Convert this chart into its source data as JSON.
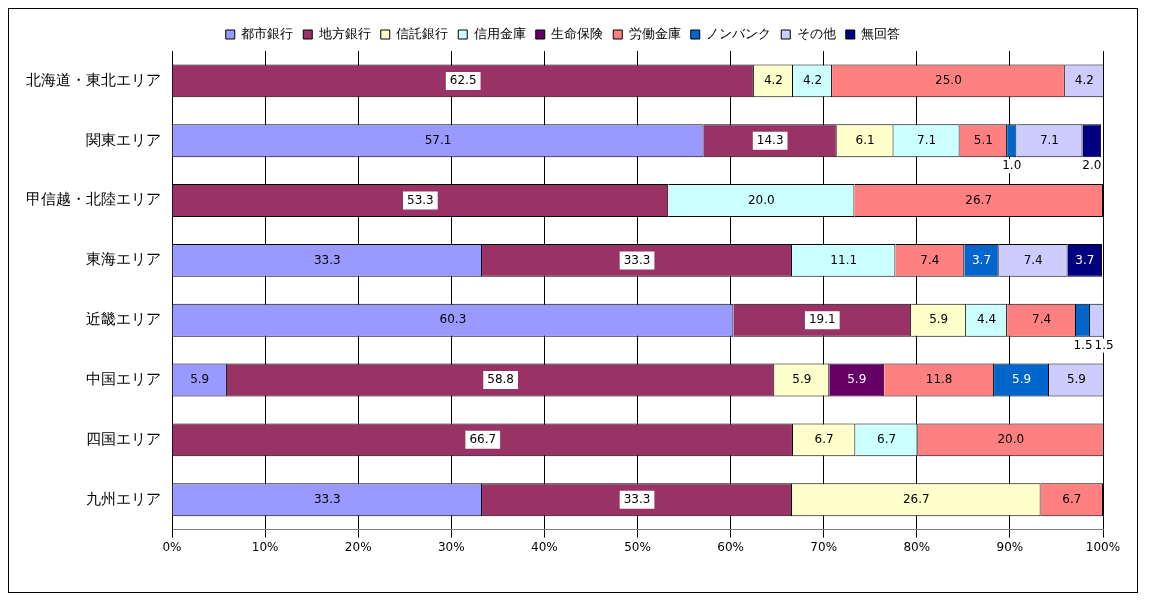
{
  "chart_data": {
    "type": "bar",
    "orientation": "horizontal",
    "stacked": true,
    "legend": "top",
    "grid": "x",
    "categories": [
      "北海道・東北エリア",
      "関東エリア",
      "甲信越・北陸エリア",
      "東海エリア",
      "近畿エリア",
      "中国エリア",
      "四国エリア",
      "九州エリア"
    ],
    "xlim": [
      0,
      100
    ],
    "xticks": [
      {
        "value": 0,
        "label": "0%"
      },
      {
        "value": 10,
        "label": "10%"
      },
      {
        "value": 20,
        "label": "20%"
      },
      {
        "value": 30,
        "label": "30%"
      },
      {
        "value": 40,
        "label": "40%"
      },
      {
        "value": 50,
        "label": "50%"
      },
      {
        "value": 60,
        "label": "60%"
      },
      {
        "value": 70,
        "label": "70%"
      },
      {
        "value": 80,
        "label": "80%"
      },
      {
        "value": 90,
        "label": "90%"
      },
      {
        "value": 100,
        "label": "100%"
      }
    ],
    "series": [
      {
        "name": "都市銀行",
        "color": "#9999ff",
        "values": [
          null,
          57.1,
          null,
          33.3,
          60.3,
          5.9,
          null,
          33.3
        ],
        "value_labels": [
          null,
          "57.1",
          null,
          "33.3",
          "60.3",
          "5.9",
          null,
          "33.3"
        ]
      },
      {
        "name": "地方銀行",
        "color": "#993366",
        "values": [
          62.5,
          14.3,
          53.3,
          33.3,
          19.1,
          58.8,
          66.7,
          33.3
        ],
        "value_labels": [
          "62.5",
          "14.3",
          "53.3",
          "33.3",
          "19.1",
          "58.8",
          "66.7",
          "33.3"
        ]
      },
      {
        "name": "信託銀行",
        "color": "#ffffcc",
        "values": [
          4.2,
          6.1,
          null,
          null,
          5.9,
          5.9,
          6.7,
          26.7
        ],
        "value_labels": [
          "4.2",
          "6.1",
          null,
          null,
          "5.9",
          "5.9",
          "6.7",
          "26.7"
        ]
      },
      {
        "name": "信用金庫",
        "color": "#ccffff",
        "values": [
          4.2,
          7.1,
          20.0,
          11.1,
          4.4,
          null,
          6.7,
          null
        ],
        "value_labels": [
          "4.2",
          "7.1",
          "20.0",
          "11.1",
          "4.4",
          null,
          "6.7",
          null
        ]
      },
      {
        "name": "生命保険",
        "color": "#660066",
        "values": [
          null,
          null,
          null,
          null,
          null,
          5.9,
          null,
          null
        ],
        "value_labels": [
          null,
          null,
          null,
          null,
          null,
          "5.9",
          null,
          null
        ]
      },
      {
        "name": "労働金庫",
        "color": "#ff8080",
        "values": [
          25.0,
          5.1,
          26.7,
          7.4,
          7.4,
          11.8,
          20.0,
          6.7
        ],
        "value_labels": [
          "25.0",
          "5.1",
          "26.7",
          "7.4",
          "7.4",
          "11.8",
          "20.0",
          "6.7"
        ]
      },
      {
        "name": "ノンバンク",
        "color": "#0066cc",
        "values": [
          null,
          1.0,
          null,
          3.7,
          1.5,
          5.9,
          null,
          null
        ],
        "value_labels": [
          null,
          "1.0",
          null,
          "3.7",
          "1.5",
          "5.9",
          null,
          null
        ]
      },
      {
        "name": "その他",
        "color": "#ccccff",
        "values": [
          4.2,
          7.1,
          null,
          7.4,
          1.5,
          5.9,
          null,
          null
        ],
        "value_labels": [
          "4.2",
          "7.1",
          null,
          "7.4",
          "1.5",
          "5.9",
          null,
          null
        ]
      },
      {
        "name": "無回答",
        "color": "#000080",
        "values": [
          null,
          2.0,
          null,
          3.7,
          null,
          null,
          null,
          null
        ],
        "value_labels": [
          null,
          "2.0",
          null,
          "3.7",
          null,
          null,
          null,
          null
        ]
      }
    ]
  }
}
